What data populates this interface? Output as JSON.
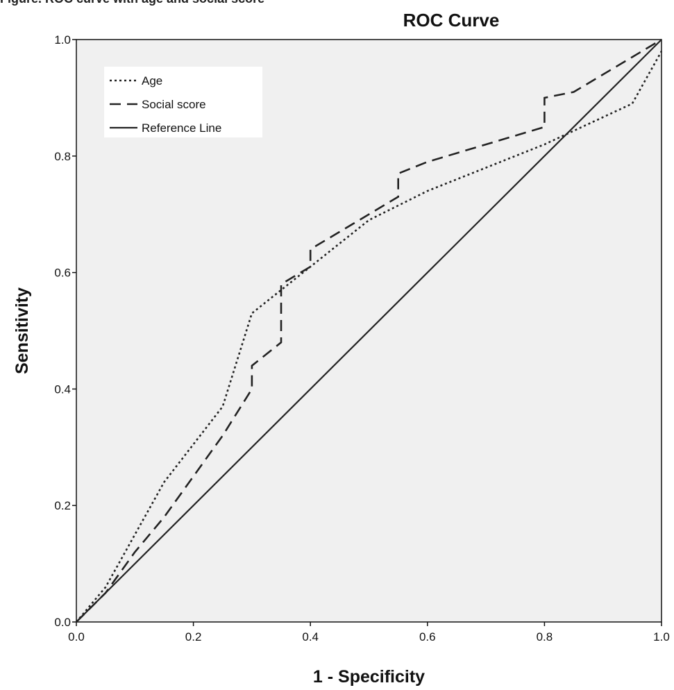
{
  "caption": "Figure. ROC curve with age and social score",
  "chart_data": {
    "type": "line",
    "title": "ROC Curve",
    "xlabel": "1 - Specificity",
    "ylabel": "Sensitivity",
    "xlim": [
      0,
      1
    ],
    "ylim": [
      0,
      1
    ],
    "xticks": [
      "0.0",
      "0.2",
      "0.4",
      "0.6",
      "0.8",
      "1.0"
    ],
    "yticks": [
      "0.0",
      "0.2",
      "0.4",
      "0.6",
      "0.8",
      "1.0"
    ],
    "grid": false,
    "legend_position": "top-left",
    "series": [
      {
        "name": "Age",
        "style": "dotted",
        "color": "#222222",
        "x": [
          0.0,
          0.05,
          0.15,
          0.25,
          0.3,
          0.35,
          0.5,
          0.6,
          0.8,
          0.95,
          1.0
        ],
        "y": [
          0.0,
          0.06,
          0.24,
          0.37,
          0.53,
          0.57,
          0.69,
          0.74,
          0.82,
          0.89,
          0.98
        ]
      },
      {
        "name": "Social score",
        "style": "dashed",
        "color": "#222222",
        "x": [
          0.0,
          0.05,
          0.1,
          0.15,
          0.2,
          0.25,
          0.3,
          0.3,
          0.35,
          0.35,
          0.4,
          0.4,
          0.45,
          0.55,
          0.55,
          0.6,
          0.8,
          0.8,
          0.85,
          0.95,
          1.0
        ],
        "y": [
          0.0,
          0.05,
          0.12,
          0.18,
          0.25,
          0.32,
          0.4,
          0.44,
          0.48,
          0.58,
          0.61,
          0.64,
          0.67,
          0.73,
          0.77,
          0.79,
          0.85,
          0.9,
          0.91,
          0.97,
          1.0
        ]
      },
      {
        "name": "Reference Line",
        "style": "solid",
        "color": "#222222",
        "x": [
          0.0,
          1.0
        ],
        "y": [
          0.0,
          1.0
        ]
      }
    ]
  },
  "colors": {
    "plot_background": "#f0f0f0",
    "axis": "#111111"
  }
}
